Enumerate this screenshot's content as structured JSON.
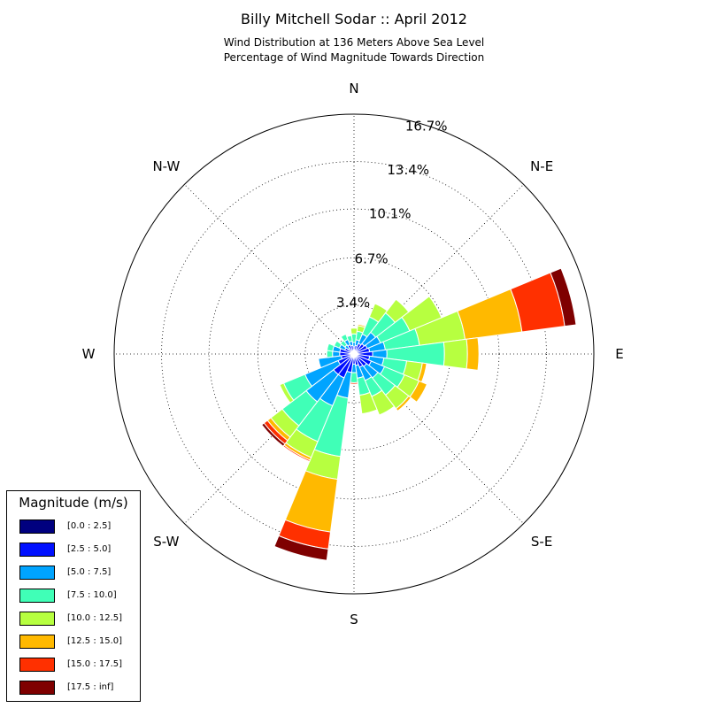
{
  "titles": {
    "main": "Billy Mitchell Sodar :: April 2012",
    "line2": "Wind Distribution at 136 Meters Above Sea Level",
    "line3": "Percentage of Wind Magnitude Towards Direction"
  },
  "chart_data": {
    "type": "windrose",
    "title": "Billy Mitchell Sodar :: April 2012",
    "subtitle": "Wind Distribution at 136 Meters Above Sea Level / Percentage of Wind Magnitude Towards Direction",
    "direction_labels": [
      "N",
      "N-E",
      "E",
      "S-E",
      "S",
      "S-W",
      "W",
      "N-W"
    ],
    "radial_ticks": [
      3.4,
      6.7,
      10.1,
      13.4,
      16.7
    ],
    "radial_tick_labels": [
      "3.4%",
      "6.7%",
      "10.1%",
      "13.4%",
      "16.7%"
    ],
    "radial_max": 16.7,
    "grid": true,
    "legend": {
      "title": "Magnitude (m/s)",
      "position": "lower-left",
      "bins": [
        "[0.0 : 2.5]",
        "[2.5 : 5.0]",
        "[5.0 : 7.5]",
        "[7.5 : 10.0]",
        "[10.0 : 12.5]",
        "[12.5 : 15.0]",
        "[15.0 : 17.5]",
        "[17.5 : inf]"
      ],
      "colors": [
        "#00007f",
        "#0010ff",
        "#00a4ff",
        "#40ffb7",
        "#b7ff40",
        "#ffb900",
        "#ff3000",
        "#7f0000"
      ]
    },
    "bin_colors": [
      "#00007f",
      "#0010ff",
      "#00a4ff",
      "#40ffb7",
      "#b7ff40",
      "#ffb900",
      "#ff3000",
      "#7f0000"
    ],
    "sector_width_deg": 15,
    "directions_deg": [
      0,
      15,
      30,
      45,
      60,
      75,
      90,
      105,
      120,
      135,
      150,
      165,
      180,
      195,
      210,
      225,
      240,
      255,
      270,
      285,
      300,
      315,
      330,
      345
    ],
    "series": [
      {
        "name": "[0.0 : 2.5]",
        "values": [
          0.2,
          0.2,
          0.2,
          0.2,
          0.2,
          0.2,
          0.2,
          0.2,
          0.2,
          0.2,
          0.2,
          0.2,
          0.2,
          0.2,
          0.2,
          0.3,
          0.2,
          0.2,
          0.2,
          0.2,
          0.2,
          0.2,
          0.2,
          0.2
        ]
      },
      {
        "name": "[2.5 : 5.0]",
        "values": [
          0.3,
          0.4,
          0.6,
          0.7,
          0.8,
          0.9,
          1.1,
          0.9,
          1.1,
          0.9,
          0.8,
          0.6,
          0.5,
          1.1,
          1.6,
          1.5,
          1.0,
          0.7,
          0.8,
          0.8,
          0.5,
          0.3,
          0.5,
          0.4
        ]
      },
      {
        "name": "[5.0 : 7.5]",
        "values": [
          0.3,
          0.4,
          0.7,
          1.0,
          1.0,
          1.1,
          1.0,
          1.0,
          1.0,
          1.0,
          1.0,
          0.9,
          0.6,
          1.8,
          2.1,
          2.4,
          2.5,
          1.6,
          0.5,
          0.5,
          0.4,
          0.3,
          0.4,
          0.3
        ]
      },
      {
        "name": "[7.5 : 10.0]",
        "values": [
          0.6,
          0.6,
          1.3,
          1.7,
          2.2,
          2.4,
          4.0,
          1.6,
          1.5,
          1.5,
          1.2,
          1.2,
          0.7,
          4.1,
          2.7,
          2.1,
          1.6,
          0.0,
          0.4,
          0.4,
          0.4,
          0.4,
          0.4,
          0.4
        ]
      },
      {
        "name": "[10.0 : 12.5]",
        "values": [
          0.4,
          0.4,
          1.0,
          1.2,
          2.4,
          3.2,
          1.6,
          1.1,
          1.1,
          1.2,
          1.4,
          1.3,
          0.0,
          1.6,
          1.2,
          1.0,
          0.3,
          0.0,
          0.0,
          0.0,
          0.0,
          0.0,
          0.0,
          0.0
        ]
      },
      {
        "name": "[12.5 : 15.0]",
        "values": [
          0.0,
          0.1,
          0.0,
          0.0,
          0.0,
          4.0,
          0.8,
          0.3,
          0.6,
          0.2,
          0.0,
          0.0,
          0.0,
          3.7,
          0.2,
          0.3,
          0.0,
          0.0,
          0.0,
          0.0,
          0.0,
          0.0,
          0.0,
          0.0
        ]
      },
      {
        "name": "[15.0 : 17.5]",
        "values": [
          0.0,
          0.0,
          0.0,
          0.0,
          0.0,
          3.0,
          0.0,
          0.0,
          0.0,
          0.0,
          0.0,
          0.0,
          0.1,
          1.2,
          0.1,
          0.3,
          0.0,
          0.0,
          0.0,
          0.0,
          0.0,
          0.0,
          0.0,
          0.0
        ]
      },
      {
        "name": "[17.5 : inf]",
        "values": [
          0.0,
          0.0,
          0.0,
          0.0,
          0.0,
          0.8,
          0.0,
          0.0,
          0.0,
          0.0,
          0.0,
          0.0,
          0.0,
          0.8,
          0.0,
          0.2,
          0.0,
          0.0,
          0.0,
          0.0,
          0.0,
          0.0,
          0.0,
          0.0
        ]
      }
    ]
  }
}
